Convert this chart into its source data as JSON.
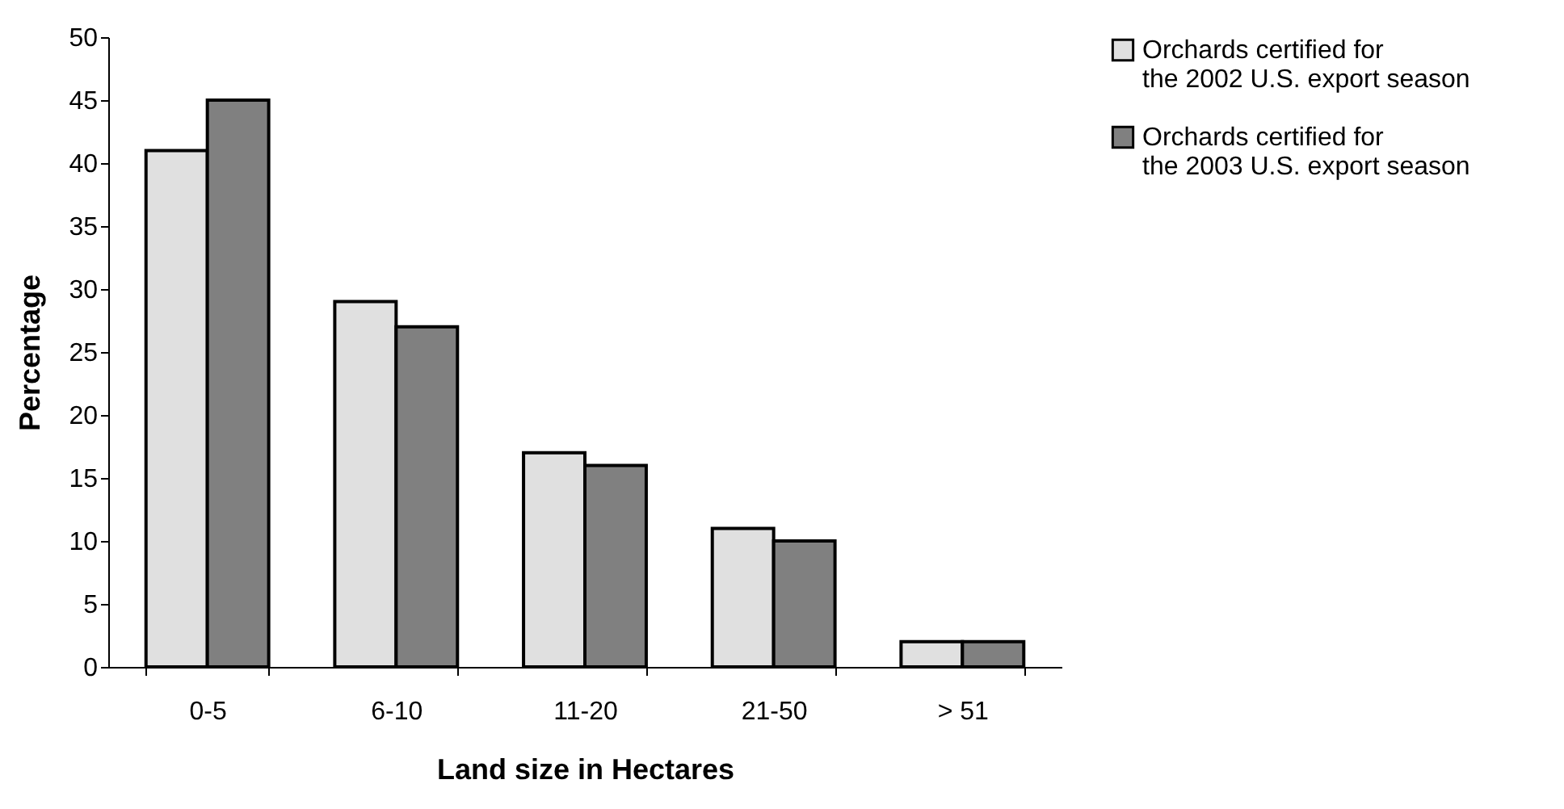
{
  "chart_data": {
    "type": "bar",
    "xlabel": "Land size in Hectares",
    "ylabel": "Percentage",
    "categories": [
      "0-5",
      "6-10",
      "11-20",
      "21-50",
      "> 51"
    ],
    "series": [
      {
        "name": "Orchards certified for the 2002 U.S. export season",
        "color": "#e0e0e0",
        "values": [
          41,
          29,
          17,
          11,
          2
        ]
      },
      {
        "name": "Orchards certified for the 2003 U.S. export season",
        "color": "#808080",
        "values": [
          45,
          27,
          16,
          10,
          2
        ]
      }
    ],
    "ylim": [
      0,
      50
    ],
    "yticks": [
      0,
      5,
      10,
      15,
      20,
      25,
      30,
      35,
      40,
      45,
      50
    ],
    "grid": false,
    "legend": "right"
  }
}
